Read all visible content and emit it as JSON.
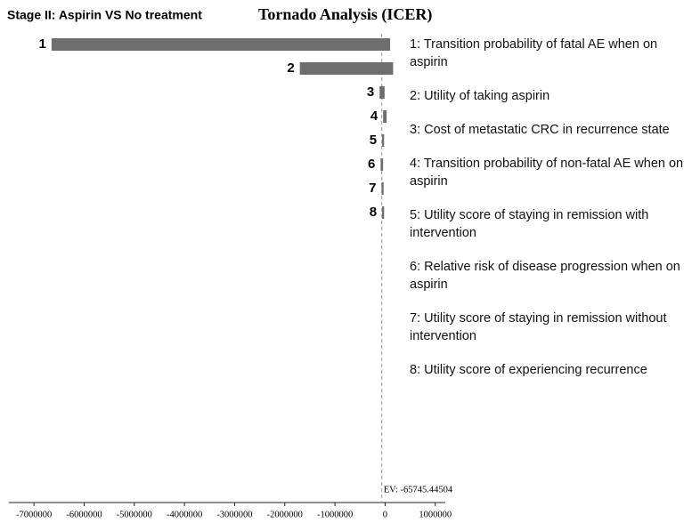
{
  "chart_data": {
    "type": "tornado",
    "subtitle": "Stage II: Aspirin VS No treatment",
    "title": "Tornado Analysis (ICER)",
    "categories": [
      "1",
      "2",
      "3",
      "4",
      "5",
      "6",
      "7",
      "8"
    ],
    "descriptions": [
      "1: Transition probability of fatal AE when on aspirin",
      "2: Utility of taking aspirin",
      "3: Cost of metastatic CRC in recurrence state",
      "4: Transition probability of non-fatal AE when on aspirin",
      "5: Utility score of staying in remission with intervention",
      "6: Relative risk of disease progression when on aspirin",
      "7: Utility score of staying in remission without intervention",
      "8: Utility score of experiencing recurrence"
    ],
    "low": [
      -6650000,
      -1700000,
      -110000,
      -40000,
      -60000,
      -90000,
      -70000,
      -60000
    ],
    "high": [
      100000,
      160000,
      -10000,
      30000,
      -20000,
      -40000,
      -30000,
      -20000
    ],
    "color": "#6e6e6e",
    "ev": {
      "value": -65745.44504,
      "label": "EV: -65745.44504"
    },
    "xlim": [
      -7500000,
      1200000
    ],
    "xticks": [
      -7000000,
      -6000000,
      -5000000,
      -4000000,
      -3000000,
      -2000000,
      -1000000,
      0,
      1000000
    ]
  }
}
